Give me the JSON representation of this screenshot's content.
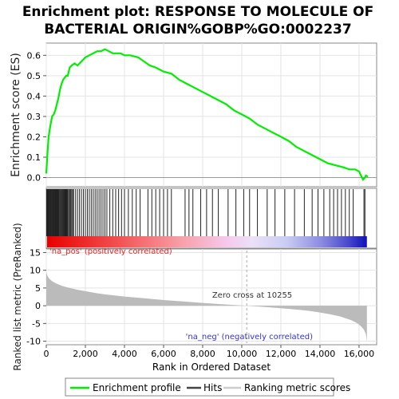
{
  "chart_data": {
    "type": "line",
    "title_lines": [
      "Enrichment plot: RESPONSE TO MOLECULE OF",
      "BACTERIAL ORIGIN%GOBP%GO:0002237"
    ],
    "xlabel": "Rank in Ordered Dataset",
    "xlim": [
      0,
      16900
    ],
    "x_ticks": [
      0,
      2000,
      4000,
      6000,
      8000,
      10000,
      12000,
      14000,
      16000
    ],
    "x_tick_labels": [
      "0",
      "2,000",
      "4,000",
      "6,000",
      "8,000",
      "10,000",
      "12,000",
      "14,000",
      "16,000"
    ],
    "es_panel": {
      "ylabel": "Enrichment score (ES)",
      "ylim": [
        -0.045,
        0.66
      ],
      "y_ticks": [
        0.0,
        0.1,
        0.2,
        0.3,
        0.4,
        0.5,
        0.6
      ],
      "y_tick_labels": [
        "0.0",
        "0.1",
        "0.2",
        "0.3",
        "0.4",
        "0.5",
        "0.6"
      ],
      "series": [
        {
          "name": "Enrichment profile",
          "color": "#00ee00",
          "x": [
            0,
            60,
            120,
            200,
            300,
            380,
            460,
            540,
            620,
            700,
            780,
            860,
            940,
            1020,
            1100,
            1200,
            1300,
            1450,
            1600,
            1800,
            2000,
            2200,
            2400,
            2600,
            2800,
            3000,
            3200,
            3400,
            3600,
            3800,
            4000,
            4300,
            4700,
            5000,
            5300,
            5600,
            6000,
            6400,
            6800,
            7200,
            7600,
            8000,
            8400,
            8800,
            9200,
            9600,
            10000,
            10400,
            10800,
            11200,
            11600,
            12000,
            12400,
            12800,
            13200,
            13600,
            14000,
            14400,
            14800,
            15200,
            15500,
            15800,
            16000,
            16100,
            16200,
            16300,
            16350,
            16450
          ],
          "y": [
            0.02,
            0.12,
            0.2,
            0.25,
            0.3,
            0.31,
            0.33,
            0.36,
            0.39,
            0.43,
            0.46,
            0.48,
            0.49,
            0.5,
            0.5,
            0.54,
            0.55,
            0.56,
            0.55,
            0.57,
            0.59,
            0.6,
            0.61,
            0.62,
            0.62,
            0.63,
            0.62,
            0.61,
            0.61,
            0.61,
            0.6,
            0.6,
            0.59,
            0.57,
            0.55,
            0.54,
            0.52,
            0.51,
            0.48,
            0.46,
            0.44,
            0.42,
            0.4,
            0.38,
            0.36,
            0.33,
            0.31,
            0.29,
            0.26,
            0.24,
            0.22,
            0.2,
            0.18,
            0.15,
            0.13,
            0.11,
            0.09,
            0.07,
            0.06,
            0.05,
            0.04,
            0.04,
            0.03,
            0.01,
            -0.01,
            0.0,
            0.01,
            0.005
          ]
        }
      ]
    },
    "hits_panel": {
      "hit_ranks": [
        20,
        45,
        70,
        95,
        120,
        150,
        180,
        210,
        240,
        270,
        300,
        330,
        360,
        390,
        420,
        450,
        480,
        510,
        540,
        570,
        600,
        630,
        660,
        700,
        740,
        780,
        820,
        860,
        900,
        940,
        980,
        1020,
        1060,
        1100,
        1150,
        1200,
        1250,
        1300,
        1350,
        1400,
        1500,
        1600,
        1700,
        1800,
        1900,
        2000,
        2100,
        2200,
        2300,
        2400,
        2500,
        2600,
        2700,
        2800,
        2900,
        3000,
        3100,
        3250,
        3400,
        3550,
        3700,
        3850,
        4000,
        4200,
        4400,
        4600,
        4800,
        5200,
        5400,
        5600,
        5800,
        6000,
        6200,
        6400,
        7100,
        7300,
        7500,
        7900,
        8200,
        8500,
        8800,
        9300,
        9700,
        10100,
        10400,
        10800,
        11300,
        11700,
        12200,
        12700,
        13200,
        13600,
        13900,
        14200,
        14500,
        14700,
        14900,
        15100,
        15300,
        15500,
        15700,
        16250,
        16300
      ]
    },
    "rank_metric_panel": {
      "ylabel": "Ranked list metric (PreRanked)",
      "ylim": [
        -11,
        16
      ],
      "y_ticks": [
        -10,
        -5,
        0,
        5,
        10,
        15
      ],
      "y_tick_labels": [
        "-10",
        "-5",
        "0",
        "5",
        "10",
        "15"
      ],
      "profile_x": [
        0,
        50,
        150,
        300,
        500,
        800,
        1200,
        1600,
        2000,
        2500,
        3000,
        3500,
        4000,
        5000,
        6000,
        7000,
        8000,
        9000,
        10255,
        11000,
        12000,
        13000,
        13500,
        14000,
        14500,
        15000,
        15300,
        15600,
        15900,
        16100,
        16250,
        16350,
        16400
      ],
      "profile_y": [
        9.5,
        8.5,
        7.6,
        6.9,
        6.3,
        5.6,
        5.0,
        4.5,
        4.1,
        3.6,
        3.2,
        2.9,
        2.6,
        2.1,
        1.6,
        1.2,
        0.8,
        0.4,
        0.0,
        -0.3,
        -0.7,
        -1.2,
        -1.5,
        -1.9,
        -2.4,
        -3.0,
        -3.5,
        -4.1,
        -4.9,
        -5.8,
        -6.8,
        -8.0,
        -10.0
      ],
      "zero_cross": 10255,
      "zero_cross_label": "Zero cross at 10255",
      "pos_label": "'na_pos' (positively correlated)",
      "neg_label": "'na_neg' (negatively correlated)"
    },
    "legend": {
      "placement": "bottom",
      "entries": [
        {
          "label": "Enrichment profile",
          "color": "#00ee00"
        },
        {
          "label": "Hits",
          "color": "#444444"
        },
        {
          "label": "Ranking metric scores",
          "color": "#cccccc"
        }
      ]
    },
    "colors": {
      "es_line": "#00ee00",
      "hit": "#222222",
      "metric_fill": "#bbbbbb",
      "pos_text": "#ee2222",
      "neg_text": "#3333cc",
      "zero_text": "#333333"
    }
  }
}
